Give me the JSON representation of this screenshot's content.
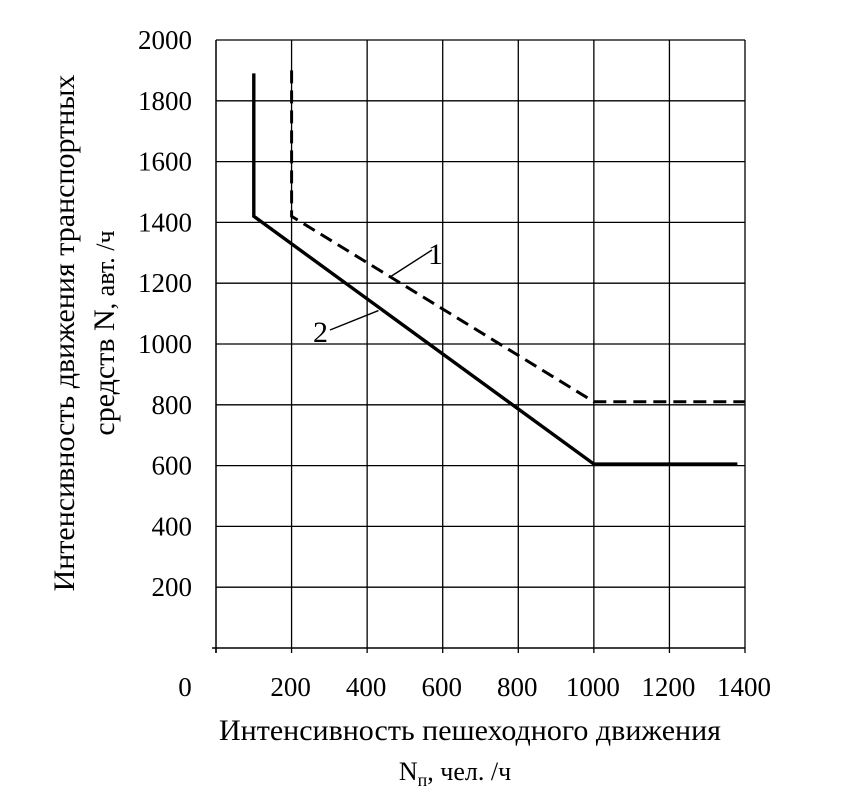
{
  "chart_data": {
    "type": "line",
    "xlabel": "Интенсивность  пешеходного движения",
    "xlabel_unit": {
      "symbol": "N",
      "subscript": "п",
      "rest": ", чел. /ч"
    },
    "ylabel": "Интенсивность движения транспортных",
    "ylabel_line2": {
      "text": "средств  N",
      "rest": ", авт. /ч"
    },
    "xlim": [
      0,
      1400
    ],
    "ylim": [
      0,
      2000
    ],
    "x_ticks": [
      0,
      200,
      400,
      600,
      800,
      1000,
      1200,
      1400
    ],
    "x_tick_labels": [
      "0",
      "200",
      "400",
      "600",
      "800",
      "1000",
      "1200",
      "1400"
    ],
    "y_ticks": [
      200,
      400,
      600,
      800,
      1000,
      1200,
      1400,
      1600,
      1800,
      2000
    ],
    "y_tick_labels": [
      "200",
      "400",
      "600",
      "800",
      "1000",
      "1200",
      "1400",
      "1600",
      "1800",
      "2000"
    ],
    "grid": true,
    "series": [
      {
        "name": "1",
        "style": "dashed",
        "color": "#000000",
        "points": [
          [
            200,
            1900
          ],
          [
            200,
            1420
          ],
          [
            1000,
            810
          ],
          [
            1400,
            810
          ]
        ]
      },
      {
        "name": "2",
        "style": "solid",
        "color": "#000000",
        "points": [
          [
            100,
            1890
          ],
          [
            100,
            1420
          ],
          [
            1000,
            605
          ],
          [
            1380,
            605
          ]
        ]
      }
    ],
    "annotations": [
      {
        "text": "1",
        "series": "1",
        "anchor": [
          460,
          1220
        ]
      },
      {
        "text": "2",
        "series": "2",
        "anchor": [
          430,
          1110
        ]
      }
    ]
  }
}
